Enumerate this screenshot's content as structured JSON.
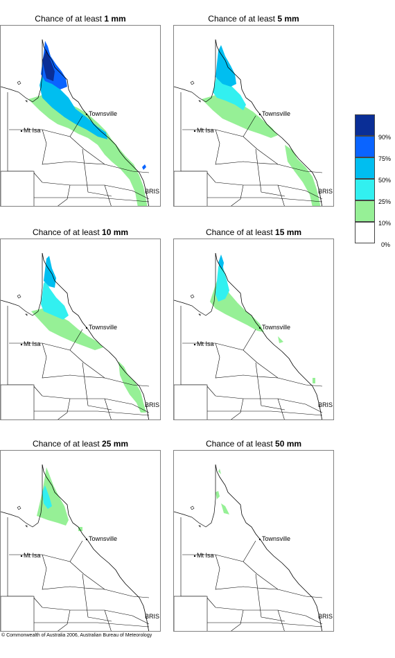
{
  "panels": [
    {
      "prefix": "Chance of at least ",
      "amount": "1 mm"
    },
    {
      "prefix": "Chance of at least ",
      "amount": "5 mm"
    },
    {
      "prefix": "Chance of at least ",
      "amount": "10 mm"
    },
    {
      "prefix": "Chance of at least ",
      "amount": "15 mm"
    },
    {
      "prefix": "Chance of at least ",
      "amount": "25 mm"
    },
    {
      "prefix": "Chance of at least ",
      "amount": "50 mm"
    }
  ],
  "map_labels": {
    "townsville": "Townsville",
    "mt_isa": "Mt Isa",
    "bris": "BRIS"
  },
  "legend": {
    "labels": [
      "90%",
      "75%",
      "50%",
      "25%",
      "10%",
      "0%"
    ],
    "colors": [
      "#0a2e96",
      "#0a64ff",
      "#00bef0",
      "#32f0f0",
      "#96f096",
      "#ffffff"
    ]
  },
  "copyright": "© Commonwealth of Australia 2006, Australian Bureau of Meteorology"
}
